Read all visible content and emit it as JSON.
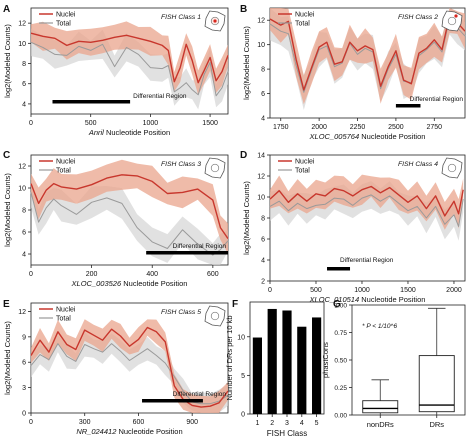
{
  "figure": {
    "legend_nuclei": "Nuclei",
    "legend_total": "Total",
    "dr_label": "Differential Region",
    "ylabel": "log2(Modeled Counts)",
    "nuclei_color": "#c8372d",
    "nuclei_band_color": "#e9a48c",
    "total_color": "#9a9a9a",
    "total_band_color": "#d4d4d4",
    "panel_labels": [
      "A",
      "B",
      "C",
      "D",
      "E",
      "F",
      "G"
    ]
  },
  "chart_data": [
    {
      "id": "A",
      "type": "line",
      "class_label": "FISH Class 1",
      "xlabel_italic": "Anril",
      "xlabel_rest": " Nucleotide Position",
      "xlim": [
        0,
        1650
      ],
      "ylim": [
        3,
        13.5
      ],
      "xticks": [
        0,
        500,
        1000,
        1500
      ],
      "yticks": [
        4,
        6,
        8,
        10,
        12
      ],
      "differential_region": [
        180,
        830
      ],
      "series": [
        {
          "name": "Nuclei",
          "x": [
            0,
            100,
            200,
            300,
            400,
            500,
            600,
            700,
            800,
            900,
            1000,
            1100,
            1150,
            1200,
            1250,
            1300,
            1350,
            1400,
            1450,
            1500,
            1550,
            1600,
            1650
          ],
          "y": [
            11,
            10.7,
            10.5,
            9.8,
            10.2,
            10.1,
            10.3,
            10.6,
            10.8,
            10.5,
            10.2,
            9.8,
            9.3,
            6.2,
            7.6,
            9.9,
            8.3,
            6.1,
            7.3,
            8.6,
            6.3,
            7.2,
            8.8
          ]
        },
        {
          "name": "Total",
          "x": [
            0,
            100,
            200,
            300,
            400,
            500,
            600,
            700,
            800,
            900,
            1000,
            1100,
            1150,
            1200,
            1250,
            1300,
            1350,
            1400,
            1450,
            1500,
            1550,
            1600,
            1650
          ],
          "y": [
            10.1,
            9.6,
            8.9,
            8.8,
            9.7,
            9.3,
            9.9,
            7.7,
            9.6,
            8.9,
            7.6,
            7.5,
            7.8,
            5.2,
            5.6,
            6.1,
            5.4,
            4.9,
            6.9,
            8.1,
            4.8,
            5.6,
            7.2
          ]
        }
      ]
    },
    {
      "id": "B",
      "type": "line",
      "class_label": "FISH Class 2",
      "xlabel_italic": "XLOC_005764",
      "xlabel_rest": " Nucleotide Position",
      "xlim": [
        1680,
        2950
      ],
      "ylim": [
        4,
        13
      ],
      "xticks": [
        1750,
        2000,
        2250,
        2500,
        2750
      ],
      "yticks": [
        4,
        6,
        8,
        10,
        12
      ],
      "differential_region": [
        2500,
        2660
      ],
      "series": [
        {
          "name": "Nuclei",
          "x": [
            1680,
            1750,
            1800,
            1850,
            1900,
            1950,
            2000,
            2050,
            2100,
            2150,
            2200,
            2250,
            2300,
            2350,
            2400,
            2450,
            2500,
            2550,
            2600,
            2650,
            2700,
            2750,
            2800,
            2850,
            2900,
            2950
          ],
          "y": [
            12.1,
            11.6,
            11.9,
            8.8,
            6.3,
            8.1,
            9.8,
            10.2,
            8.4,
            8.6,
            10.2,
            9.5,
            9.9,
            9.6,
            6.6,
            8.2,
            9.5,
            7.1,
            6.8,
            9.3,
            9.7,
            10.4,
            9.6,
            12.4,
            11.8,
            11.1
          ]
        },
        {
          "name": "Total",
          "x": [
            1680,
            1750,
            1800,
            1850,
            1900,
            1950,
            2000,
            2050,
            2100,
            2150,
            2200,
            2250,
            2300,
            2350,
            2400,
            2450,
            2500,
            2550,
            2600,
            2650,
            2700,
            2750,
            2800,
            2850,
            2900,
            2950
          ],
          "y": [
            11.7,
            11.1,
            10.9,
            8.3,
            6.1,
            7.9,
            9.6,
            9.9,
            8.2,
            8.5,
            10.1,
            9.2,
            9.7,
            9.4,
            6.4,
            8.0,
            9.2,
            7.0,
            6.9,
            9.1,
            9.6,
            10.2,
            9.4,
            12.1,
            11.4,
            10.7
          ]
        }
      ]
    },
    {
      "id": "C",
      "type": "line",
      "class_label": "FISH Class 3",
      "xlabel_italic": "XLOC_003526",
      "xlabel_rest": " Nucleotide Position",
      "xlim": [
        0,
        650
      ],
      "ylim": [
        3,
        13
      ],
      "xticks": [
        0,
        200,
        400,
        600
      ],
      "yticks": [
        4,
        6,
        8,
        10,
        12
      ],
      "differential_region": [
        380,
        650
      ],
      "series": [
        {
          "name": "Nuclei",
          "x": [
            0,
            25,
            50,
            75,
            100,
            150,
            200,
            250,
            300,
            350,
            400,
            450,
            500,
            550,
            600,
            625,
            650
          ],
          "y": [
            10.4,
            8.6,
            9.8,
            10.4,
            10.1,
            9.9,
            10.3,
            10.9,
            11.2,
            11.1,
            10.6,
            9.5,
            9.6,
            9.9,
            8.9,
            6.4,
            5.4
          ]
        },
        {
          "name": "Total",
          "x": [
            0,
            25,
            50,
            75,
            100,
            150,
            200,
            250,
            300,
            350,
            400,
            450,
            500,
            550,
            600,
            625,
            650
          ],
          "y": [
            9.6,
            6.9,
            8.2,
            9.0,
            8.4,
            7.6,
            8.7,
            9.1,
            8.6,
            6.4,
            5.1,
            4.5,
            6.2,
            4.9,
            3.9,
            4.4,
            5.2
          ]
        }
      ]
    },
    {
      "id": "D",
      "type": "line",
      "class_label": "FISH Class 4",
      "xlabel_italic": "XLOC_010514",
      "xlabel_rest": " Nucleotide Position",
      "xlim": [
        0,
        2120
      ],
      "ylim": [
        2,
        14
      ],
      "xticks": [
        0,
        500,
        1000,
        1500,
        2000
      ],
      "yticks": [
        2,
        4,
        6,
        8,
        10,
        12,
        14
      ],
      "differential_region": [
        620,
        870
      ],
      "series": [
        {
          "name": "Nuclei",
          "x": [
            0,
            100,
            200,
            300,
            400,
            500,
            600,
            700,
            800,
            900,
            1000,
            1100,
            1200,
            1300,
            1400,
            1500,
            1600,
            1700,
            1800,
            1900,
            2000,
            2050,
            2100
          ],
          "y": [
            9.8,
            10.6,
            9.5,
            10.3,
            9.6,
            10.3,
            10.1,
            10.8,
            10.6,
            10.1,
            10.7,
            11.0,
            10.4,
            10.9,
            10.2,
            9.5,
            10.1,
            8.9,
            10.1,
            8.2,
            9.6,
            8.4,
            10.7
          ]
        },
        {
          "name": "Total",
          "x": [
            0,
            100,
            200,
            300,
            400,
            500,
            600,
            700,
            800,
            900,
            1000,
            1100,
            1200,
            1300,
            1400,
            1500,
            1600,
            1700,
            1800,
            1900,
            2000,
            2050,
            2100
          ],
          "y": [
            9.1,
            9.6,
            8.7,
            9.4,
            8.9,
            9.2,
            9.3,
            9.9,
            9.8,
            9.2,
            9.9,
            10.2,
            9.6,
            10.1,
            9.4,
            8.7,
            9.1,
            8.0,
            9.1,
            7.4,
            8.3,
            7.2,
            9.8
          ]
        }
      ]
    },
    {
      "id": "E",
      "type": "line",
      "class_label": "FISH Class 5",
      "xlabel_italic": "NR_024412",
      "xlabel_rest": " Nucleotide Position",
      "xlim": [
        0,
        1100
      ],
      "ylim": [
        0,
        13
      ],
      "xticks": [
        0,
        300,
        600,
        900
      ],
      "yticks": [
        0,
        3,
        6,
        9,
        12
      ],
      "differential_region": [
        620,
        960
      ],
      "series": [
        {
          "name": "Nuclei",
          "x": [
            0,
            50,
            100,
            150,
            200,
            250,
            300,
            350,
            400,
            450,
            500,
            550,
            600,
            650,
            700,
            750,
            800,
            850,
            900,
            950,
            1000,
            1050,
            1100
          ],
          "y": [
            6.8,
            8.6,
            7.2,
            9.6,
            8.1,
            7.5,
            9.8,
            9.2,
            8.6,
            9.9,
            9.1,
            7.9,
            8.7,
            10.1,
            9.6,
            8.4,
            3.2,
            1.6,
            0.9,
            0.7,
            0.8,
            1.2,
            2.6
          ]
        },
        {
          "name": "Total",
          "x": [
            0,
            50,
            100,
            150,
            200,
            250,
            300,
            350,
            400,
            450,
            500,
            550,
            600,
            650,
            700,
            750,
            800,
            850,
            900,
            950,
            1000,
            1050,
            1100
          ],
          "y": [
            5.6,
            6.9,
            6.3,
            8.2,
            6.7,
            6.1,
            8.1,
            7.6,
            7.2,
            8.2,
            7.3,
            6.2,
            6.9,
            7.6,
            6.8,
            5.9,
            4.3,
            2.6,
            1.3,
            1.1,
            1.1,
            1.4,
            2.1
          ]
        }
      ]
    },
    {
      "id": "F",
      "type": "bar",
      "categories": [
        "1",
        "2",
        "3",
        "4",
        "5"
      ],
      "values": [
        9.9,
        13.6,
        13.4,
        11.3,
        12.5
      ],
      "xlabel": "FISH Class",
      "ylabel": "Number of DRs per 10 kb",
      "ylim": [
        0,
        14.5
      ],
      "yticks": [
        0,
        5,
        10
      ]
    },
    {
      "id": "G",
      "type": "box",
      "categories": [
        "nonDRs",
        "DRs"
      ],
      "ylabel": "phastCons",
      "ylim": [
        0,
        1
      ],
      "yticks": [
        0,
        0.25,
        0.5,
        0.75,
        1.0
      ],
      "annotation": "* P < 1/10^6",
      "boxes": [
        {
          "name": "nonDRs",
          "min": 0.0,
          "q1": 0.02,
          "median": 0.06,
          "q3": 0.13,
          "max": 0.32
        },
        {
          "name": "DRs",
          "min": 0.0,
          "q1": 0.03,
          "median": 0.09,
          "q3": 0.54,
          "max": 0.97
        }
      ]
    }
  ]
}
